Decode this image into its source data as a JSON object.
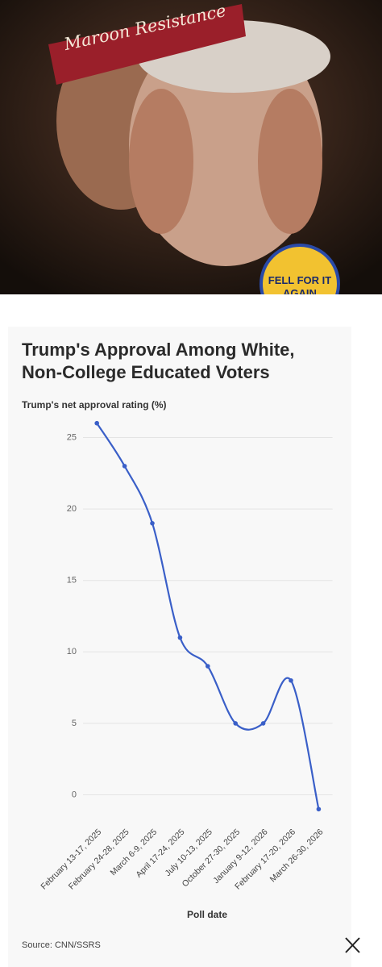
{
  "photo": {
    "headband": "Maroon Resistance",
    "badge": "FELL FOR IT AGAIN"
  },
  "chart_data": {
    "type": "line",
    "title": "Trump's Approval Among White, Non-College Educated Voters",
    "y_label": "Trump's net approval rating (%)",
    "x_label": "Poll date",
    "source": "Source: CNN/SSRS",
    "categories": [
      "February 13-17, 2025",
      "February 24-28, 2025",
      "March 6-9, 2025",
      "April 17-24, 2025",
      "July 10-13, 2025",
      "October 27-30, 2025",
      "January 9-12, 2026",
      "February 17-20, 2026",
      "March 26-30, 2026"
    ],
    "values": [
      26,
      23,
      19,
      11,
      9,
      5,
      5,
      8,
      -1
    ],
    "color": "#3a5fc8",
    "ylim": [
      -2,
      27
    ],
    "yticks": [
      0,
      5,
      10,
      15,
      20,
      25
    ],
    "grid": true
  }
}
